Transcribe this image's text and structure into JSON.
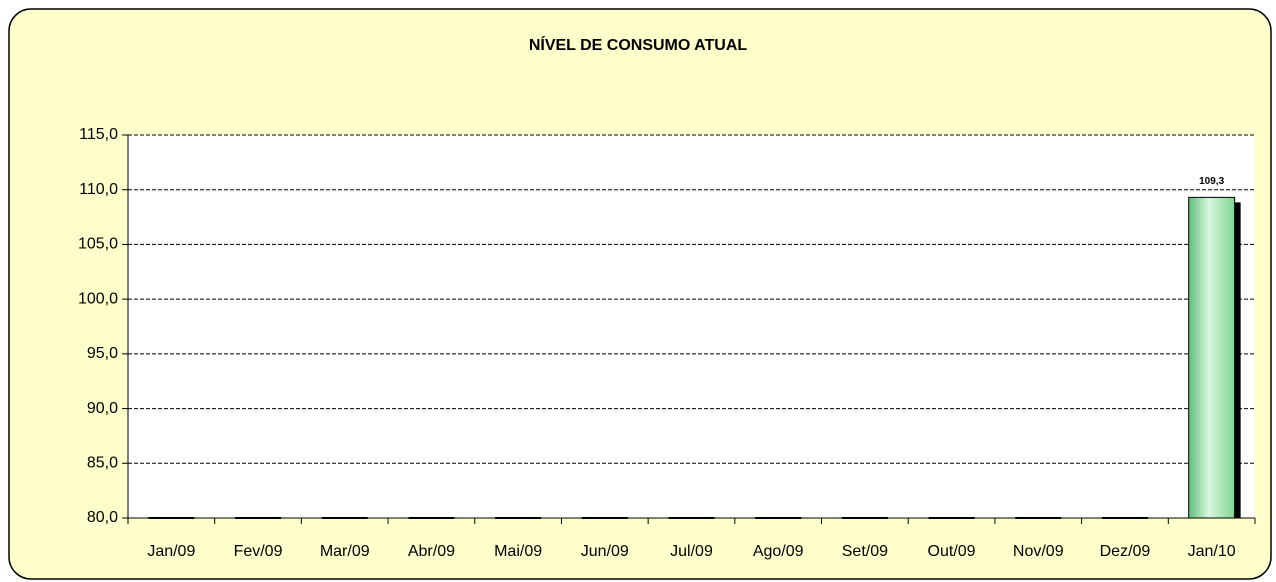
{
  "chart_data": {
    "type": "bar",
    "title": "NÍVEL DE CONSUMO ATUAL",
    "categories": [
      "Jan/09",
      "Fev/09",
      "Mar/09",
      "Abr/09",
      "Mai/09",
      "Jun/09",
      "Jul/09",
      "Ago/09",
      "Set/09",
      "Out/09",
      "Nov/09",
      "Dez/09",
      "Jan/10"
    ],
    "values": [
      null,
      null,
      null,
      null,
      null,
      null,
      null,
      null,
      null,
      null,
      null,
      null,
      109.3
    ],
    "value_labels": [
      null,
      null,
      null,
      null,
      null,
      null,
      null,
      null,
      null,
      null,
      null,
      null,
      "109,3"
    ],
    "color": "#9ee6b0",
    "ylim": [
      80,
      115
    ],
    "yticks": [
      {
        "value": 80,
        "label": "80,0"
      },
      {
        "value": 85,
        "label": "85,0"
      },
      {
        "value": 90,
        "label": "90,0"
      },
      {
        "value": 95,
        "label": "95,0"
      },
      {
        "value": 100,
        "label": "100,0"
      },
      {
        "value": 105,
        "label": "105,0"
      },
      {
        "value": 110,
        "label": "110,0"
      },
      {
        "value": 115,
        "label": "115,0"
      }
    ],
    "grid": true
  }
}
